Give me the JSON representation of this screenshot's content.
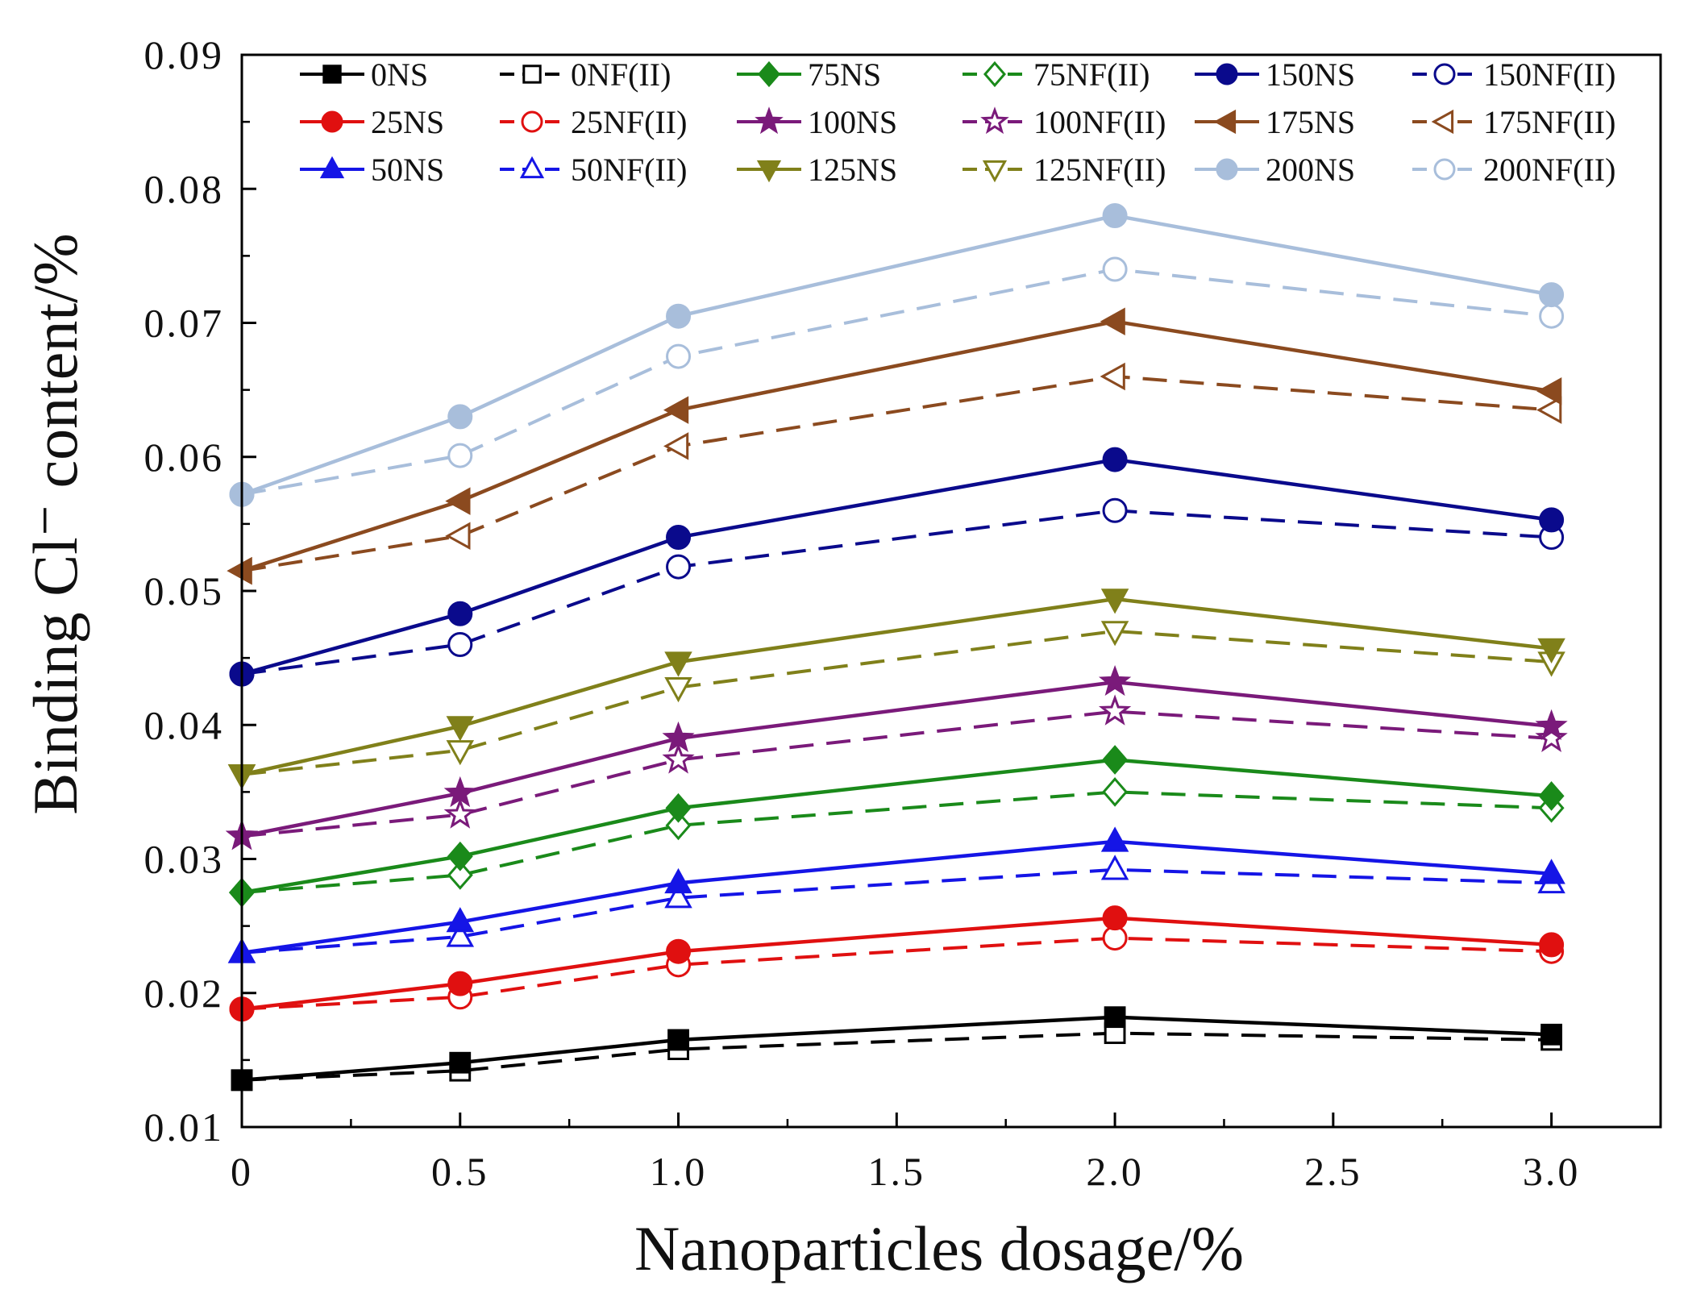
{
  "chart_data": {
    "type": "line",
    "title": "",
    "xlabel": "Nanoparticles dosage/%",
    "ylabel": "Binding Cl⁻ content/%",
    "xlim": [
      0,
      3.25
    ],
    "ylim": [
      0.01,
      0.09
    ],
    "xticks": [
      0,
      0.5,
      1.0,
      1.5,
      2.0,
      2.5,
      3.0
    ],
    "xtick_labels": [
      "0",
      "0.5",
      "1.0",
      "1.5",
      "2.0",
      "2.5",
      "3.0"
    ],
    "yticks": [
      0.01,
      0.02,
      0.03,
      0.04,
      0.05,
      0.06,
      0.07,
      0.08,
      0.09
    ],
    "ytick_labels": [
      "0.01",
      "0.02",
      "0.03",
      "0.04",
      "0.05",
      "0.06",
      "0.07",
      "0.08",
      "0.09"
    ],
    "grid": false,
    "legend_position": "top",
    "x": [
      0,
      0.5,
      1.0,
      2.0,
      3.0
    ],
    "series": [
      {
        "name": "0NS",
        "color": "#000000",
        "marker": "square",
        "filled": true,
        "dashed": false,
        "values": [
          0.0135,
          0.0148,
          0.0165,
          0.0182,
          0.0169
        ]
      },
      {
        "name": "0NF(II)",
        "color": "#000000",
        "marker": "square",
        "filled": false,
        "dashed": true,
        "values": [
          0.0135,
          0.0142,
          0.0158,
          0.017,
          0.0165
        ]
      },
      {
        "name": "75NS",
        "color": "#1a8a1a",
        "marker": "diamond",
        "filled": true,
        "dashed": false,
        "values": [
          0.0275,
          0.0302,
          0.0338,
          0.0374,
          0.0347
        ]
      },
      {
        "name": "75NF(II)",
        "color": "#1a8a1a",
        "marker": "diamond",
        "filled": false,
        "dashed": true,
        "values": [
          0.0275,
          0.0288,
          0.0325,
          0.035,
          0.0338
        ]
      },
      {
        "name": "150NS",
        "color": "#0a0a8c",
        "marker": "circle",
        "filled": true,
        "dashed": false,
        "values": [
          0.0438,
          0.0483,
          0.054,
          0.0598,
          0.0553
        ]
      },
      {
        "name": "150NF(II)",
        "color": "#0a0a8c",
        "marker": "circle",
        "filled": false,
        "dashed": true,
        "values": [
          0.0438,
          0.046,
          0.0518,
          0.056,
          0.054
        ]
      },
      {
        "name": "25NS",
        "color": "#e01010",
        "marker": "circle",
        "filled": true,
        "dashed": false,
        "values": [
          0.0188,
          0.0207,
          0.0231,
          0.0256,
          0.0236
        ]
      },
      {
        "name": "25NF(II)",
        "color": "#e01010",
        "marker": "circle",
        "filled": false,
        "dashed": true,
        "values": [
          0.0188,
          0.0197,
          0.0221,
          0.0241,
          0.0231
        ]
      },
      {
        "name": "100NS",
        "color": "#7a1a7a",
        "marker": "star",
        "filled": true,
        "dashed": false,
        "values": [
          0.0317,
          0.0349,
          0.039,
          0.0432,
          0.0399
        ]
      },
      {
        "name": "100NF(II)",
        "color": "#7a1a7a",
        "marker": "star",
        "filled": false,
        "dashed": true,
        "values": [
          0.0317,
          0.0333,
          0.0374,
          0.041,
          0.039
        ]
      },
      {
        "name": "175NS",
        "color": "#8b4a1f",
        "marker": "triangle-left",
        "filled": true,
        "dashed": false,
        "values": [
          0.0515,
          0.0567,
          0.0635,
          0.0701,
          0.0649
        ]
      },
      {
        "name": "175NF(II)",
        "color": "#8b4a1f",
        "marker": "triangle-left",
        "filled": false,
        "dashed": true,
        "values": [
          0.0515,
          0.0541,
          0.0608,
          0.066,
          0.0635
        ]
      },
      {
        "name": "50NS",
        "color": "#1515e6",
        "marker": "triangle-up",
        "filled": true,
        "dashed": false,
        "values": [
          0.023,
          0.0253,
          0.0282,
          0.0313,
          0.0289
        ]
      },
      {
        "name": "50NF(II)",
        "color": "#1515e6",
        "marker": "triangle-up",
        "filled": false,
        "dashed": true,
        "values": [
          0.023,
          0.0242,
          0.0271,
          0.0292,
          0.0282
        ]
      },
      {
        "name": "125NS",
        "color": "#80801a",
        "marker": "triangle-down",
        "filled": true,
        "dashed": false,
        "values": [
          0.0363,
          0.0399,
          0.0447,
          0.0494,
          0.0457
        ]
      },
      {
        "name": "125NF(II)",
        "color": "#80801a",
        "marker": "triangle-down",
        "filled": false,
        "dashed": true,
        "values": [
          0.0363,
          0.0381,
          0.0428,
          0.047,
          0.0447
        ]
      },
      {
        "name": "200NS",
        "color": "#a8bedb",
        "marker": "circle",
        "filled": true,
        "dashed": false,
        "values": [
          0.0572,
          0.063,
          0.0705,
          0.078,
          0.0721
        ]
      },
      {
        "name": "200NF(II)",
        "color": "#a8bedb",
        "marker": "circle",
        "filled": false,
        "dashed": true,
        "values": [
          0.0572,
          0.0601,
          0.0675,
          0.074,
          0.0705
        ]
      }
    ]
  }
}
